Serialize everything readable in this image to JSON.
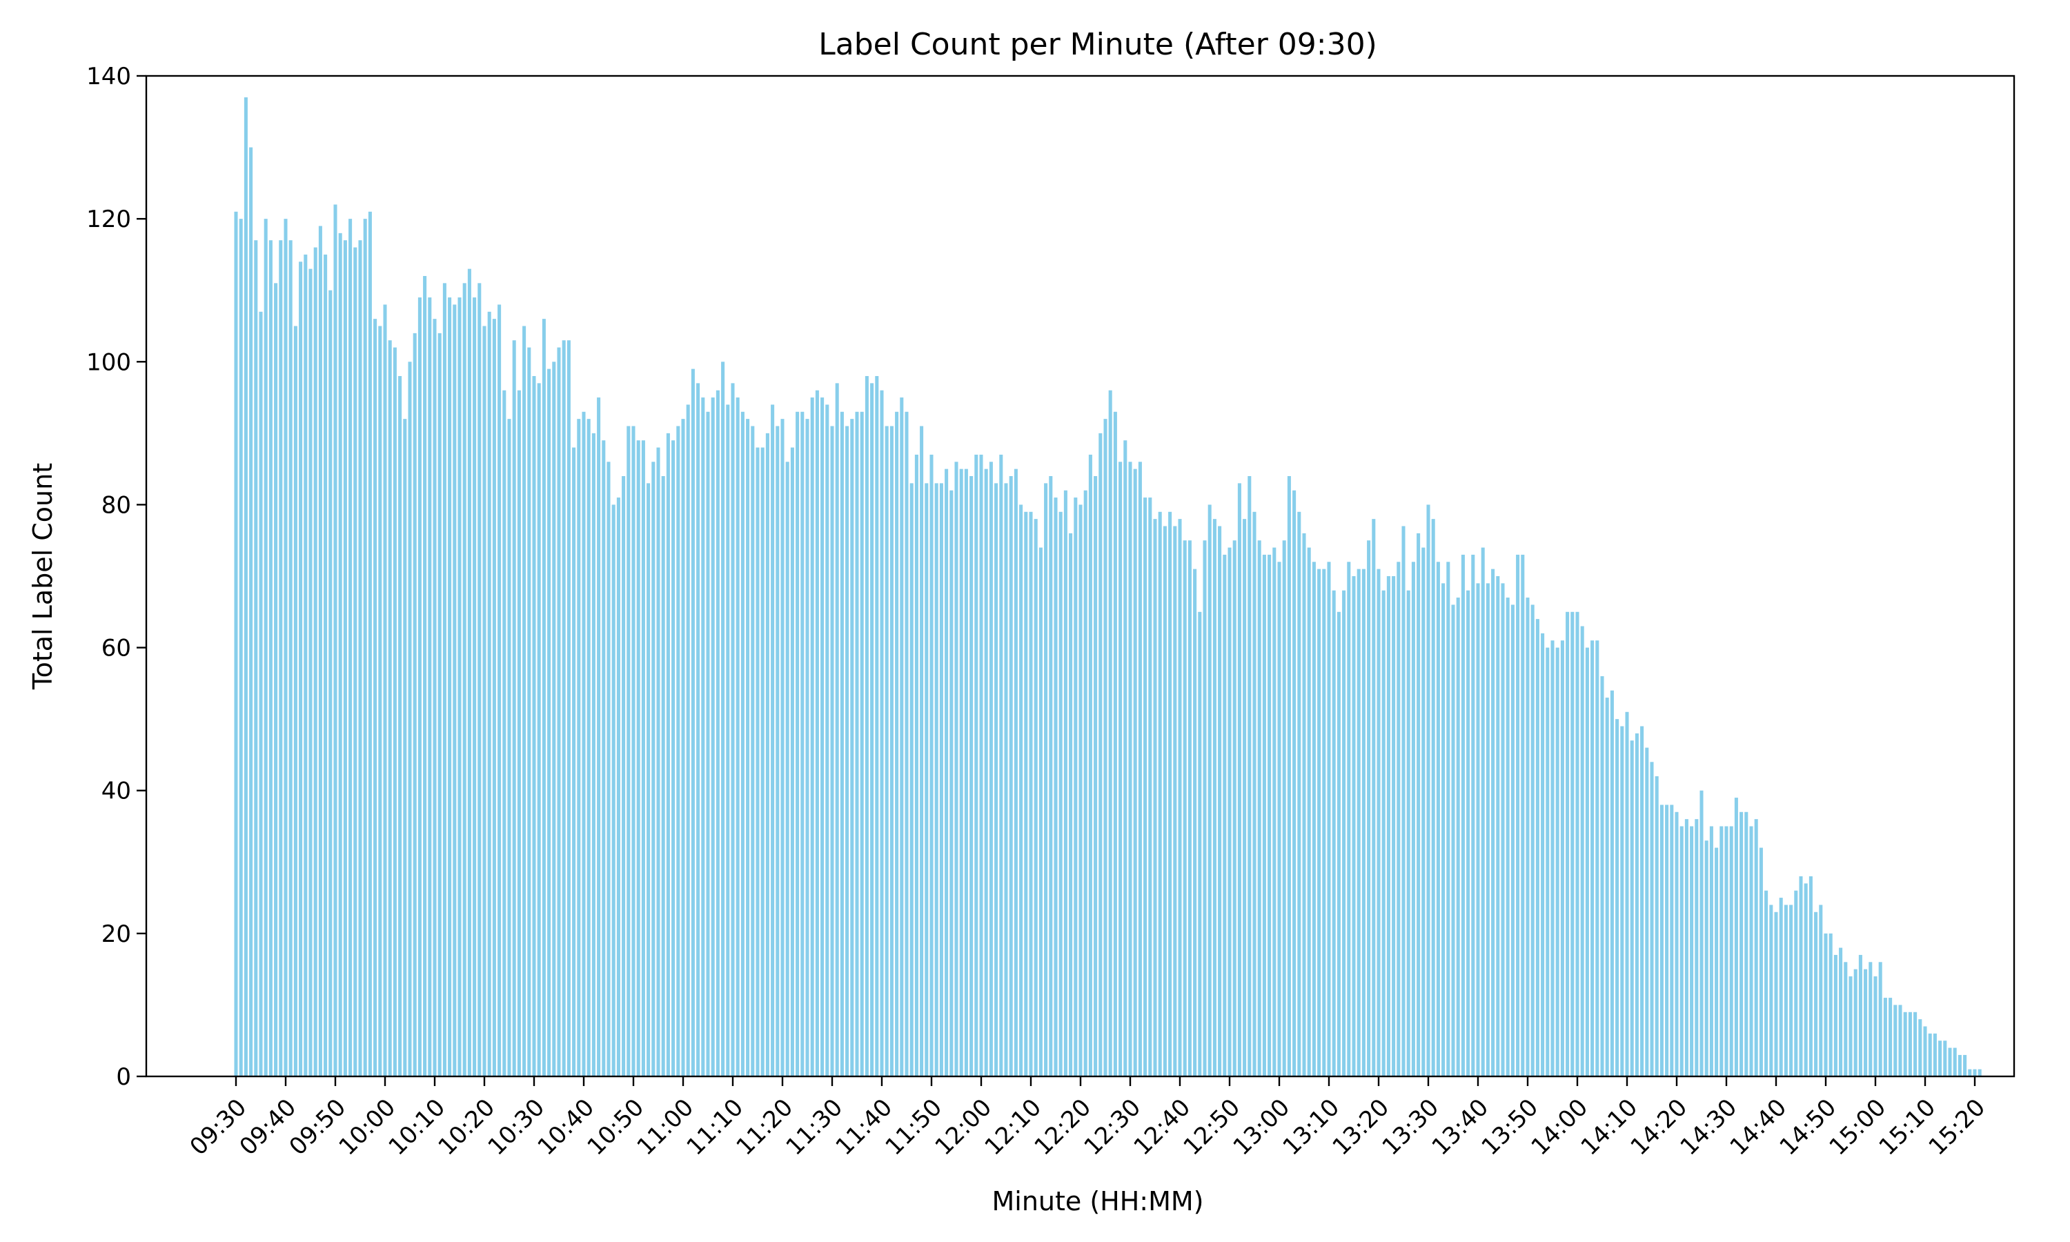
{
  "chart_data": {
    "type": "bar",
    "title": "Label Count per Minute (After 09:30)",
    "xlabel": "Minute (HH:MM)",
    "ylabel": "Total Label Count",
    "ylim": [
      0,
      140
    ],
    "yticks": [
      0,
      20,
      40,
      60,
      80,
      100,
      120,
      140
    ],
    "grid": false,
    "bar_color": "#87ceeb",
    "start_time": "09:30",
    "xtick_labels": [
      "09:30",
      "09:40",
      "09:50",
      "10:00",
      "10:10",
      "10:20",
      "10:30",
      "10:40",
      "10:50",
      "11:00",
      "11:10",
      "11:20",
      "11:30",
      "11:40",
      "11:50",
      "12:00",
      "12:10",
      "12:20",
      "12:30",
      "12:40",
      "12:50",
      "13:00",
      "13:10",
      "13:20",
      "13:30",
      "13:40",
      "13:50",
      "14:00",
      "14:10",
      "14:20",
      "14:30",
      "14:40",
      "14:50",
      "15:00",
      "15:10",
      "15:20"
    ],
    "values": [
      121,
      120,
      137,
      130,
      117,
      107,
      120,
      117,
      111,
      117,
      120,
      117,
      105,
      114,
      115,
      113,
      116,
      119,
      115,
      110,
      122,
      118,
      117,
      120,
      116,
      117,
      120,
      121,
      106,
      105,
      108,
      103,
      102,
      98,
      92,
      100,
      104,
      109,
      112,
      109,
      106,
      104,
      111,
      109,
      108,
      109,
      111,
      113,
      109,
      111,
      105,
      107,
      106,
      108,
      96,
      92,
      103,
      96,
      105,
      102,
      98,
      97,
      106,
      99,
      100,
      102,
      103,
      103,
      88,
      92,
      93,
      92,
      90,
      95,
      89,
      86,
      80,
      81,
      84,
      91,
      91,
      89,
      89,
      83,
      86,
      88,
      84,
      90,
      89,
      91,
      92,
      94,
      99,
      97,
      95,
      93,
      95,
      96,
      100,
      94,
      97,
      95,
      93,
      92,
      91,
      88,
      88,
      90,
      94,
      91,
      92,
      86,
      88,
      93,
      93,
      92,
      95,
      96,
      95,
      94,
      91,
      97,
      93,
      91,
      92,
      93,
      93,
      98,
      97,
      98,
      96,
      91,
      91,
      93,
      95,
      93,
      83,
      87,
      91,
      83,
      87,
      83,
      83,
      85,
      82,
      86,
      85,
      85,
      84,
      87,
      87,
      85,
      86,
      83,
      87,
      83,
      84,
      85,
      80,
      79,
      79,
      78,
      74,
      83,
      84,
      81,
      79,
      82,
      76,
      81,
      80,
      82,
      87,
      84,
      90,
      92,
      96,
      93,
      86,
      89,
      86,
      85,
      86,
      81,
      81,
      78,
      79,
      77,
      79,
      77,
      78,
      75,
      75,
      71,
      65,
      75,
      80,
      78,
      77,
      73,
      74,
      75,
      83,
      78,
      84,
      79,
      75,
      73,
      73,
      74,
      72,
      75,
      84,
      82,
      79,
      76,
      74,
      72,
      71,
      71,
      72,
      68,
      65,
      68,
      72,
      70,
      71,
      71,
      75,
      78,
      71,
      68,
      70,
      70,
      72,
      77,
      68,
      72,
      76,
      74,
      80,
      78,
      72,
      69,
      72,
      66,
      67,
      73,
      68,
      73,
      69,
      74,
      69,
      71,
      70,
      69,
      67,
      66,
      73,
      73,
      67,
      66,
      64,
      62,
      60,
      61,
      60,
      61,
      65,
      65,
      65,
      63,
      60,
      61,
      61,
      56,
      53,
      54,
      50,
      49,
      51,
      47,
      48,
      49,
      46,
      44,
      42,
      38,
      38,
      38,
      37,
      35,
      36,
      35,
      36,
      40,
      33,
      35,
      32,
      35,
      35,
      35,
      39,
      37,
      37,
      35,
      36,
      32,
      26,
      24,
      23,
      25,
      24,
      24,
      26,
      28,
      27,
      28,
      23,
      24,
      20,
      20,
      17,
      18,
      16,
      14,
      15,
      17,
      15,
      16,
      14,
      16,
      11,
      11,
      10,
      10,
      9,
      9,
      9,
      8,
      7,
      6,
      6,
      5,
      5,
      4,
      4,
      3,
      3,
      1,
      1,
      1
    ]
  }
}
